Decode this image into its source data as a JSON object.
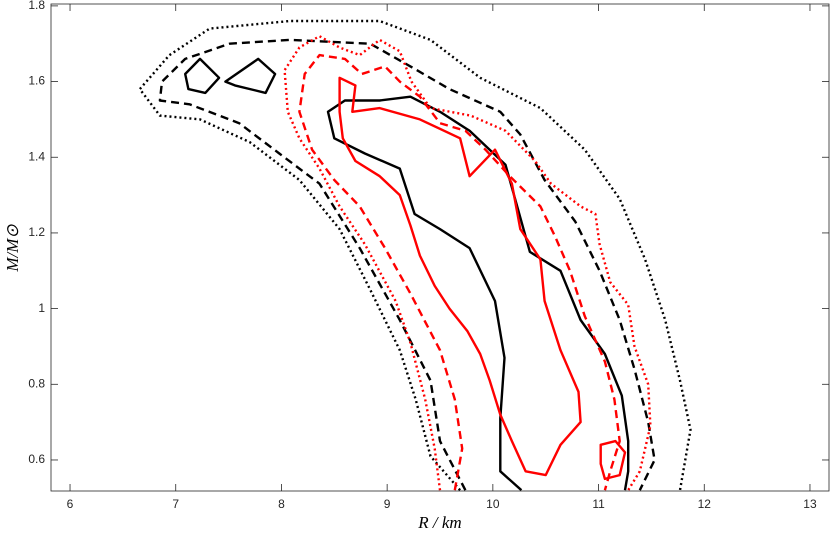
{
  "chart_data": {
    "type": "contour",
    "xlabel": "R / km",
    "ylabel": "M/M⊙",
    "xlim": [
      5.82,
      13.18
    ],
    "ylim": [
      0.518,
      1.805
    ],
    "xticks": [
      6,
      7,
      8,
      9,
      10,
      11,
      12,
      13
    ],
    "yticks": [
      0.6,
      0.8,
      1,
      1.2,
      1.4,
      1.6,
      1.8
    ],
    "series": [
      {
        "color": "#000000",
        "dash": "dotted",
        "closed": false,
        "x": [
          9.69,
          9.41,
          9.27,
          9.12,
          8.84,
          8.55,
          8.17,
          7.7,
          7.23,
          6.85,
          6.66,
          6.94,
          7.32,
          8.08,
          8.93,
          9.41,
          9.88,
          10.45,
          10.87,
          11.2,
          11.44,
          11.63,
          11.77,
          11.87,
          11.77
        ],
        "y": [
          0.52,
          0.61,
          0.76,
          0.89,
          1.05,
          1.21,
          1.34,
          1.44,
          1.5,
          1.51,
          1.58,
          1.67,
          1.74,
          1.76,
          1.76,
          1.71,
          1.61,
          1.53,
          1.42,
          1.29,
          1.13,
          0.97,
          0.81,
          0.68,
          0.52
        ]
      },
      {
        "color": "#000000",
        "dash": "dashed",
        "closed": false,
        "x": [
          9.74,
          9.5,
          9.41,
          9.12,
          8.74,
          8.36,
          7.98,
          7.6,
          7.13,
          6.85,
          6.87,
          7.09,
          7.51,
          8.08,
          8.84,
          9.22,
          9.59,
          10.07,
          10.26,
          10.49,
          10.78,
          11.01,
          11.2,
          11.34,
          11.47,
          11.53,
          11.39
        ],
        "y": [
          0.52,
          0.65,
          0.81,
          0.97,
          1.16,
          1.33,
          1.41,
          1.49,
          1.54,
          1.55,
          1.6,
          1.66,
          1.7,
          1.71,
          1.7,
          1.64,
          1.58,
          1.52,
          1.46,
          1.34,
          1.23,
          1.1,
          0.97,
          0.84,
          0.7,
          0.6,
          0.52
        ]
      },
      {
        "color": "#000000",
        "dash": "solid",
        "closed": false,
        "x": [
          10.27,
          10.07,
          10.07,
          10.11,
          10.02,
          9.78,
          9.5,
          9.26,
          9.12,
          8.79,
          8.5,
          8.44,
          8.6,
          8.93,
          9.22,
          9.5,
          9.78,
          10.12,
          10.21,
          10.35,
          10.64,
          10.83,
          11.06,
          11.22,
          11.28,
          11.28,
          11.25
        ],
        "y": [
          0.52,
          0.57,
          0.71,
          0.87,
          1.02,
          1.16,
          1.21,
          1.25,
          1.37,
          1.41,
          1.45,
          1.52,
          1.55,
          1.55,
          1.56,
          1.52,
          1.47,
          1.38,
          1.29,
          1.15,
          1.1,
          0.97,
          0.88,
          0.77,
          0.65,
          0.57,
          0.52
        ]
      },
      {
        "color": "#000000",
        "dash": "solid",
        "closed": true,
        "x": [
          7.09,
          7.23,
          7.41,
          7.28,
          7.12
        ],
        "y": [
          1.62,
          1.66,
          1.61,
          1.57,
          1.58
        ]
      },
      {
        "color": "#000000",
        "dash": "solid",
        "closed": true,
        "x": [
          7.47,
          7.78,
          7.94,
          7.85,
          7.56
        ],
        "y": [
          1.6,
          1.66,
          1.62,
          1.57,
          1.59
        ]
      },
      {
        "color": "#ff0000",
        "dash": "dotted",
        "closed": false,
        "x": [
          9.5,
          9.45,
          9.36,
          9.22,
          9.08,
          8.79,
          8.55,
          8.36,
          8.17,
          8.06,
          8.03,
          8.17,
          8.36,
          8.55,
          8.74,
          8.93,
          9.12,
          9.23,
          9.41,
          9.79,
          10.12,
          10.4,
          10.55,
          10.83,
          10.97,
          11.01,
          11.11,
          11.28,
          11.34,
          11.47,
          11.49,
          11.39,
          11.28
        ],
        "y": [
          0.52,
          0.63,
          0.76,
          0.91,
          1.02,
          1.17,
          1.27,
          1.37,
          1.45,
          1.52,
          1.63,
          1.69,
          1.72,
          1.69,
          1.67,
          1.71,
          1.68,
          1.6,
          1.53,
          1.51,
          1.47,
          1.39,
          1.33,
          1.27,
          1.25,
          1.17,
          1.07,
          1.01,
          0.9,
          0.8,
          0.69,
          0.57,
          0.52
        ]
      },
      {
        "color": "#ff0000",
        "dash": "dashed",
        "closed": false,
        "x": [
          9.64,
          9.71,
          9.64,
          9.5,
          9.22,
          8.98,
          8.74,
          8.5,
          8.29,
          8.17,
          8.22,
          8.36,
          8.6,
          8.76,
          8.98,
          9.12,
          9.31,
          9.5,
          9.74,
          9.93,
          10.16,
          10.45,
          10.59,
          10.73,
          10.87,
          11.06,
          11.15,
          11.2,
          11.11,
          11.06
        ],
        "y": [
          0.52,
          0.63,
          0.76,
          0.89,
          1.04,
          1.16,
          1.27,
          1.34,
          1.42,
          1.52,
          1.62,
          1.67,
          1.66,
          1.62,
          1.64,
          1.6,
          1.56,
          1.49,
          1.47,
          1.42,
          1.35,
          1.27,
          1.19,
          1.1,
          0.98,
          0.86,
          0.76,
          0.65,
          0.57,
          0.52
        ]
      },
      {
        "color": "#ff0000",
        "dash": "solid",
        "closed": true,
        "x": [
          8.55,
          8.7,
          8.67,
          8.93,
          9.31,
          9.69,
          9.78,
          10.02,
          10.18,
          10.26,
          10.45,
          10.49,
          10.64,
          10.81,
          10.83,
          10.64,
          10.5,
          10.31,
          10.18,
          10.07,
          9.97,
          9.88,
          9.76,
          9.59,
          9.45,
          9.31,
          9.22,
          9.12,
          8.93,
          8.7,
          8.58,
          8.55
        ],
        "y": [
          1.61,
          1.59,
          1.52,
          1.53,
          1.5,
          1.45,
          1.35,
          1.42,
          1.33,
          1.21,
          1.13,
          1.02,
          0.89,
          0.78,
          0.7,
          0.64,
          0.56,
          0.57,
          0.65,
          0.72,
          0.81,
          0.88,
          0.94,
          1.0,
          1.06,
          1.14,
          1.22,
          1.3,
          1.35,
          1.39,
          1.45,
          1.52
        ]
      },
      {
        "color": "#ff0000",
        "dash": "solid",
        "closed": true,
        "x": [
          11.02,
          11.16,
          11.25,
          11.2,
          11.06,
          11.02
        ],
        "y": [
          0.64,
          0.65,
          0.62,
          0.56,
          0.55,
          0.59
        ]
      }
    ]
  }
}
